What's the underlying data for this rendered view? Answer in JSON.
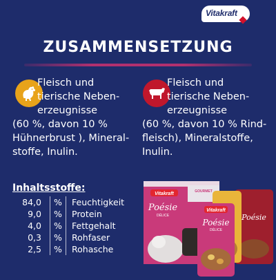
{
  "brand": {
    "logo_text": "Vitakraft"
  },
  "header": {
    "title": "ZUSAMMENSETZUNG"
  },
  "columns": [
    {
      "icon": "chicken-icon",
      "lines_indented": [
        "Fleisch und",
        "tierische Neben-",
        "erzeugnisse"
      ],
      "lines_full": [
        "(60 %, davon 10 %",
        "Hühnerbrust ), Mineral-",
        "stoffe, Inulin."
      ]
    },
    {
      "icon": "cow-icon",
      "lines_indented": [
        "Fleisch und",
        "tierische Neben-",
        "erzeugnisse"
      ],
      "lines_full": [
        "(60 %, davon 10 % Rind-",
        "fleisch), Mineralstoffe,",
        "Inulin."
      ]
    }
  ],
  "ingredients": {
    "title": "Inhaltsstoffe:",
    "rows": [
      {
        "value": "84,0",
        "unit": "%",
        "name": "Feuchtigkeit"
      },
      {
        "value": "9,0",
        "unit": "%",
        "name": "Protein"
      },
      {
        "value": "4,0",
        "unit": "%",
        "name": "Fettgehalt"
      },
      {
        "value": "0,3",
        "unit": "%",
        "name": "Rohfaser"
      },
      {
        "value": "2,5",
        "unit": "%",
        "name": "Rohasche"
      }
    ]
  },
  "product_image": {
    "box_brand": "Vitakraft",
    "box_product": "Poésie",
    "box_subtitle": "DÉLICE",
    "box_badge": "GOURMET",
    "pouch_brand": "Vitakraft",
    "pouch_product": "Poésie",
    "pouch_subtitle": "DÉLICE"
  },
  "colors": {
    "background": "#1e2c6b",
    "accent_underline": "#b1306f",
    "chicken_circle": "#e8a31a",
    "cow_circle": "#c0172c",
    "box_pink": "#c93a7a",
    "pouch_gold": "#e9b53a"
  }
}
